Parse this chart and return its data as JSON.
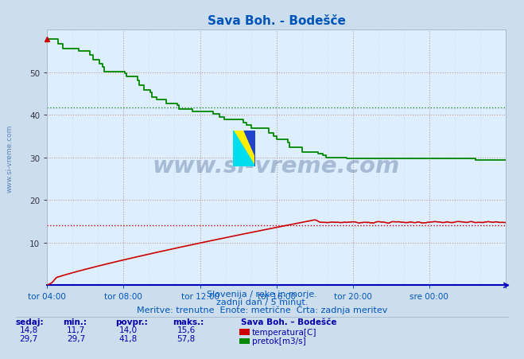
{
  "title": "Sava Boh. - Bodešče",
  "title_color": "#0055bb",
  "bg_color": "#ccdded",
  "plot_bg_color": "#ddeeff",
  "grid_color_major": "#cc9999",
  "grid_color_minor": "#bbccdd",
  "x_axis_color": "#0000bb",
  "xlabel_color": "#0055bb",
  "temp_color": "#cc0000",
  "flow_color": "#008800",
  "avg_temp_color": "#cc0000",
  "avg_flow_color": "#228822",
  "temp_avg": 14.0,
  "flow_avg": 41.8,
  "xlim_start": 0,
  "xlim_end": 288,
  "ylim_bottom": 0,
  "ylim_top": 60,
  "yticks": [
    10,
    20,
    30,
    40,
    50
  ],
  "xtick_positions": [
    0,
    48,
    96,
    144,
    192,
    240,
    288
  ],
  "xtick_labels": [
    "tor 04:00",
    "tor 08:00",
    "tor 12:00",
    "tor 16:00",
    "tor 20:00",
    "sre 00:00",
    ""
  ],
  "watermark_text": "www.si-vreme.com",
  "watermark_color": "#1a3a6a",
  "watermark_alpha": 0.28,
  "left_label": "www.si-vreme.com",
  "left_label_color": "#3366aa",
  "subtitle1": "Slovenija / reke in morje.",
  "subtitle2": "zadnji dan / 5 minut.",
  "subtitle3": "Meritve: trenutne  Enote: metrične  Črta: zadnja meritev",
  "subtitle_color": "#0055bb",
  "table_headers": [
    "sedaj:",
    "min.:",
    "povpr.:",
    "maks.:"
  ],
  "table_temp": [
    "14,8",
    "11,7",
    "14,0",
    "15,6"
  ],
  "table_flow": [
    "29,7",
    "29,7",
    "41,8",
    "57,8"
  ],
  "table_color": "#0000aa",
  "legend_title": "Sava Boh. – Bodešče",
  "legend_entries": [
    "temperatura[C]",
    "pretok[m3/s]"
  ],
  "legend_colors": [
    "#cc0000",
    "#008800"
  ]
}
